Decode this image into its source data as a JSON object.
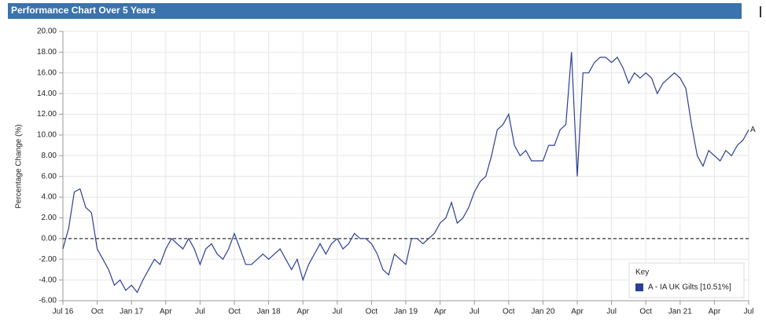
{
  "chart_data": {
    "type": "line",
    "title": "Performance Chart Over 5 Years",
    "y_label": "Percentage Change (%)",
    "legend_title": "Key",
    "categories": [
      "Jul 16",
      null,
      null,
      null,
      null,
      null,
      "Oct",
      null,
      null,
      null,
      null,
      null,
      "Jan 17",
      null,
      null,
      null,
      null,
      null,
      "Apr",
      null,
      null,
      null,
      null,
      null,
      "Jul",
      null,
      null,
      null,
      null,
      null,
      "Oct",
      null,
      null,
      null,
      null,
      null,
      "Jan 18",
      null,
      null,
      null,
      null,
      null,
      "Apr",
      null,
      null,
      null,
      null,
      null,
      "Jul",
      null,
      null,
      null,
      null,
      null,
      "Oct",
      null,
      null,
      null,
      null,
      null,
      "Jan 19",
      null,
      null,
      null,
      null,
      null,
      "Apr",
      null,
      null,
      null,
      null,
      null,
      "Jul",
      null,
      null,
      null,
      null,
      null,
      "Oct",
      null,
      null,
      null,
      null,
      null,
      "Jan 20",
      null,
      null,
      null,
      null,
      null,
      "Apr",
      null,
      null,
      null,
      null,
      null,
      "Jul",
      null,
      null,
      null,
      null,
      null,
      "Oct",
      null,
      null,
      null,
      null,
      null,
      "Jan 21",
      null,
      null,
      null,
      null,
      null,
      "Apr",
      null,
      null,
      null,
      null,
      null,
      "Jul"
    ],
    "series": [
      {
        "name": "A - IA UK Gilts [10.51%]",
        "label": "A",
        "color": "#2b3f94",
        "values": [
          -1,
          1,
          4.5,
          4.8,
          3,
          2.5,
          -1,
          -2,
          -3,
          -4.5,
          -4,
          -5,
          -4.5,
          -5.2,
          -4,
          -3,
          -2,
          -2.5,
          -1,
          0,
          -0.5,
          -1,
          0,
          -1,
          -2.5,
          -1,
          -0.5,
          -1.5,
          -2,
          -1,
          0.5,
          -1,
          -2.5,
          -2.5,
          -2,
          -1.5,
          -2,
          -1.5,
          -1,
          -2,
          -3,
          -2,
          -4,
          -2.5,
          -1.5,
          -0.5,
          -1.5,
          -0.5,
          0,
          -1,
          -0.5,
          0.5,
          0,
          0,
          -0.5,
          -1.5,
          -3,
          -3.5,
          -1.5,
          -2,
          -2.5,
          0,
          0,
          -0.5,
          0,
          0.5,
          1.5,
          2,
          3.5,
          1.5,
          2,
          3,
          4.5,
          5.5,
          6,
          8,
          10.5,
          11,
          12,
          9,
          8,
          8.5,
          7.5,
          7.5,
          7.5,
          9,
          9,
          10.5,
          11,
          18,
          6,
          16,
          16,
          17,
          17.5,
          17.5,
          17,
          17.5,
          16.5,
          15,
          16,
          15.5,
          16,
          15.5,
          14,
          15,
          15.5,
          16,
          15.5,
          14.5,
          11,
          8,
          7,
          8.5,
          8,
          7.5,
          8.5,
          8,
          9,
          9.5,
          10.5
        ]
      }
    ],
    "ylim": [
      -6,
      20
    ],
    "yticks": [
      {
        "value": -6,
        "label": "-6.00"
      },
      {
        "value": -4,
        "label": "-4.00"
      },
      {
        "value": -2,
        "label": "-2.00"
      },
      {
        "value": 0,
        "label": "0.00"
      },
      {
        "value": 2,
        "label": "2.00"
      },
      {
        "value": 4,
        "label": "4.00"
      },
      {
        "value": 6,
        "label": "6.00"
      },
      {
        "value": 8,
        "label": "8.00"
      },
      {
        "value": 10,
        "label": "10.00"
      },
      {
        "value": 12,
        "label": "12.00"
      },
      {
        "value": 14,
        "label": "14.00"
      },
      {
        "value": 16,
        "label": "16.00"
      },
      {
        "value": 18,
        "label": "18.00"
      },
      {
        "value": 20,
        "label": "20.00"
      }
    ],
    "reference_line": {
      "value": 0,
      "style": "dashed"
    },
    "grid": true,
    "legend_position": "lower right"
  }
}
